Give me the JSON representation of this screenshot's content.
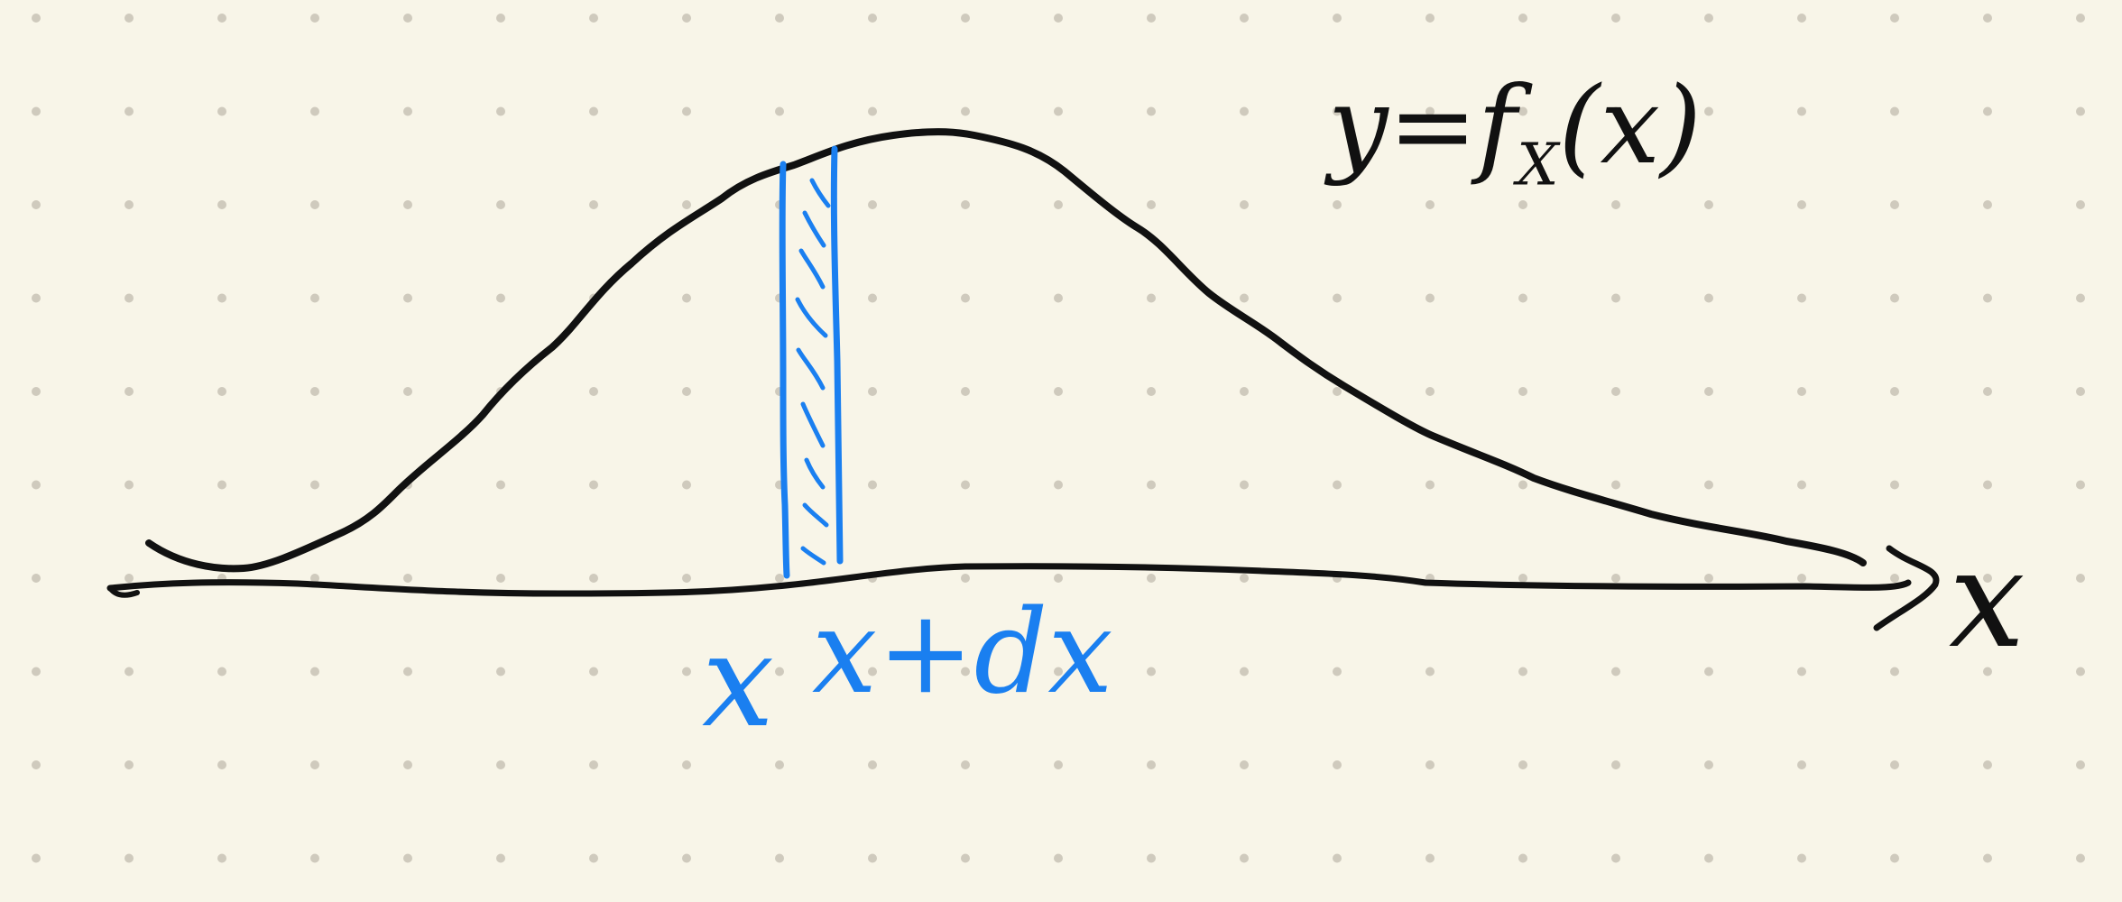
{
  "labels": {
    "function": "y=f_X(x)",
    "axis": "x",
    "strip_lower": "x",
    "strip_upper": "x+dx"
  },
  "colors": {
    "paper": "#f8f5e8",
    "dots": "#cfcabd",
    "curve": "#111111",
    "strip": "#1a7ff0"
  }
}
